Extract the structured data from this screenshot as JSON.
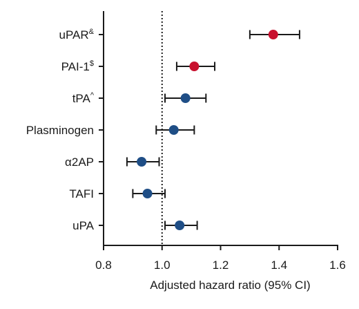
{
  "chart_data": {
    "type": "scatter",
    "subtype": "forest-plot",
    "xlabel": "Adjusted hazard ratio (95% CI)",
    "ylabel": "",
    "xlim": [
      0.8,
      1.6
    ],
    "xticks": [
      "0.8",
      "1.0",
      "1.2",
      "1.4",
      "1.6"
    ],
    "xtick_values": [
      0.8,
      1.0,
      1.2,
      1.4,
      1.6
    ],
    "reference_line": 1.0,
    "grid": false,
    "colors": {
      "significant": "#c8102e",
      "nonsignificant": "#1f4e86",
      "ink": "#1a1a1a"
    },
    "rows": [
      {
        "label": "uPAR",
        "sup": "&",
        "hr": 1.38,
        "lo": 1.3,
        "hi": 1.47,
        "significant": true
      },
      {
        "label": "PAI-1",
        "sup": "$",
        "hr": 1.11,
        "lo": 1.05,
        "hi": 1.18,
        "significant": true
      },
      {
        "label": "tPA",
        "sup": "^",
        "hr": 1.08,
        "lo": 1.01,
        "hi": 1.15,
        "significant": false
      },
      {
        "label": "Plasminogen",
        "sup": "",
        "hr": 1.04,
        "lo": 0.98,
        "hi": 1.11,
        "significant": false
      },
      {
        "label": "α2AP",
        "sup": "",
        "hr": 0.93,
        "lo": 0.88,
        "hi": 0.99,
        "significant": false
      },
      {
        "label": "TAFI",
        "sup": "",
        "hr": 0.95,
        "lo": 0.9,
        "hi": 1.01,
        "significant": false
      },
      {
        "label": "uPA",
        "sup": "",
        "hr": 1.06,
        "lo": 1.01,
        "hi": 1.12,
        "significant": false
      }
    ]
  }
}
